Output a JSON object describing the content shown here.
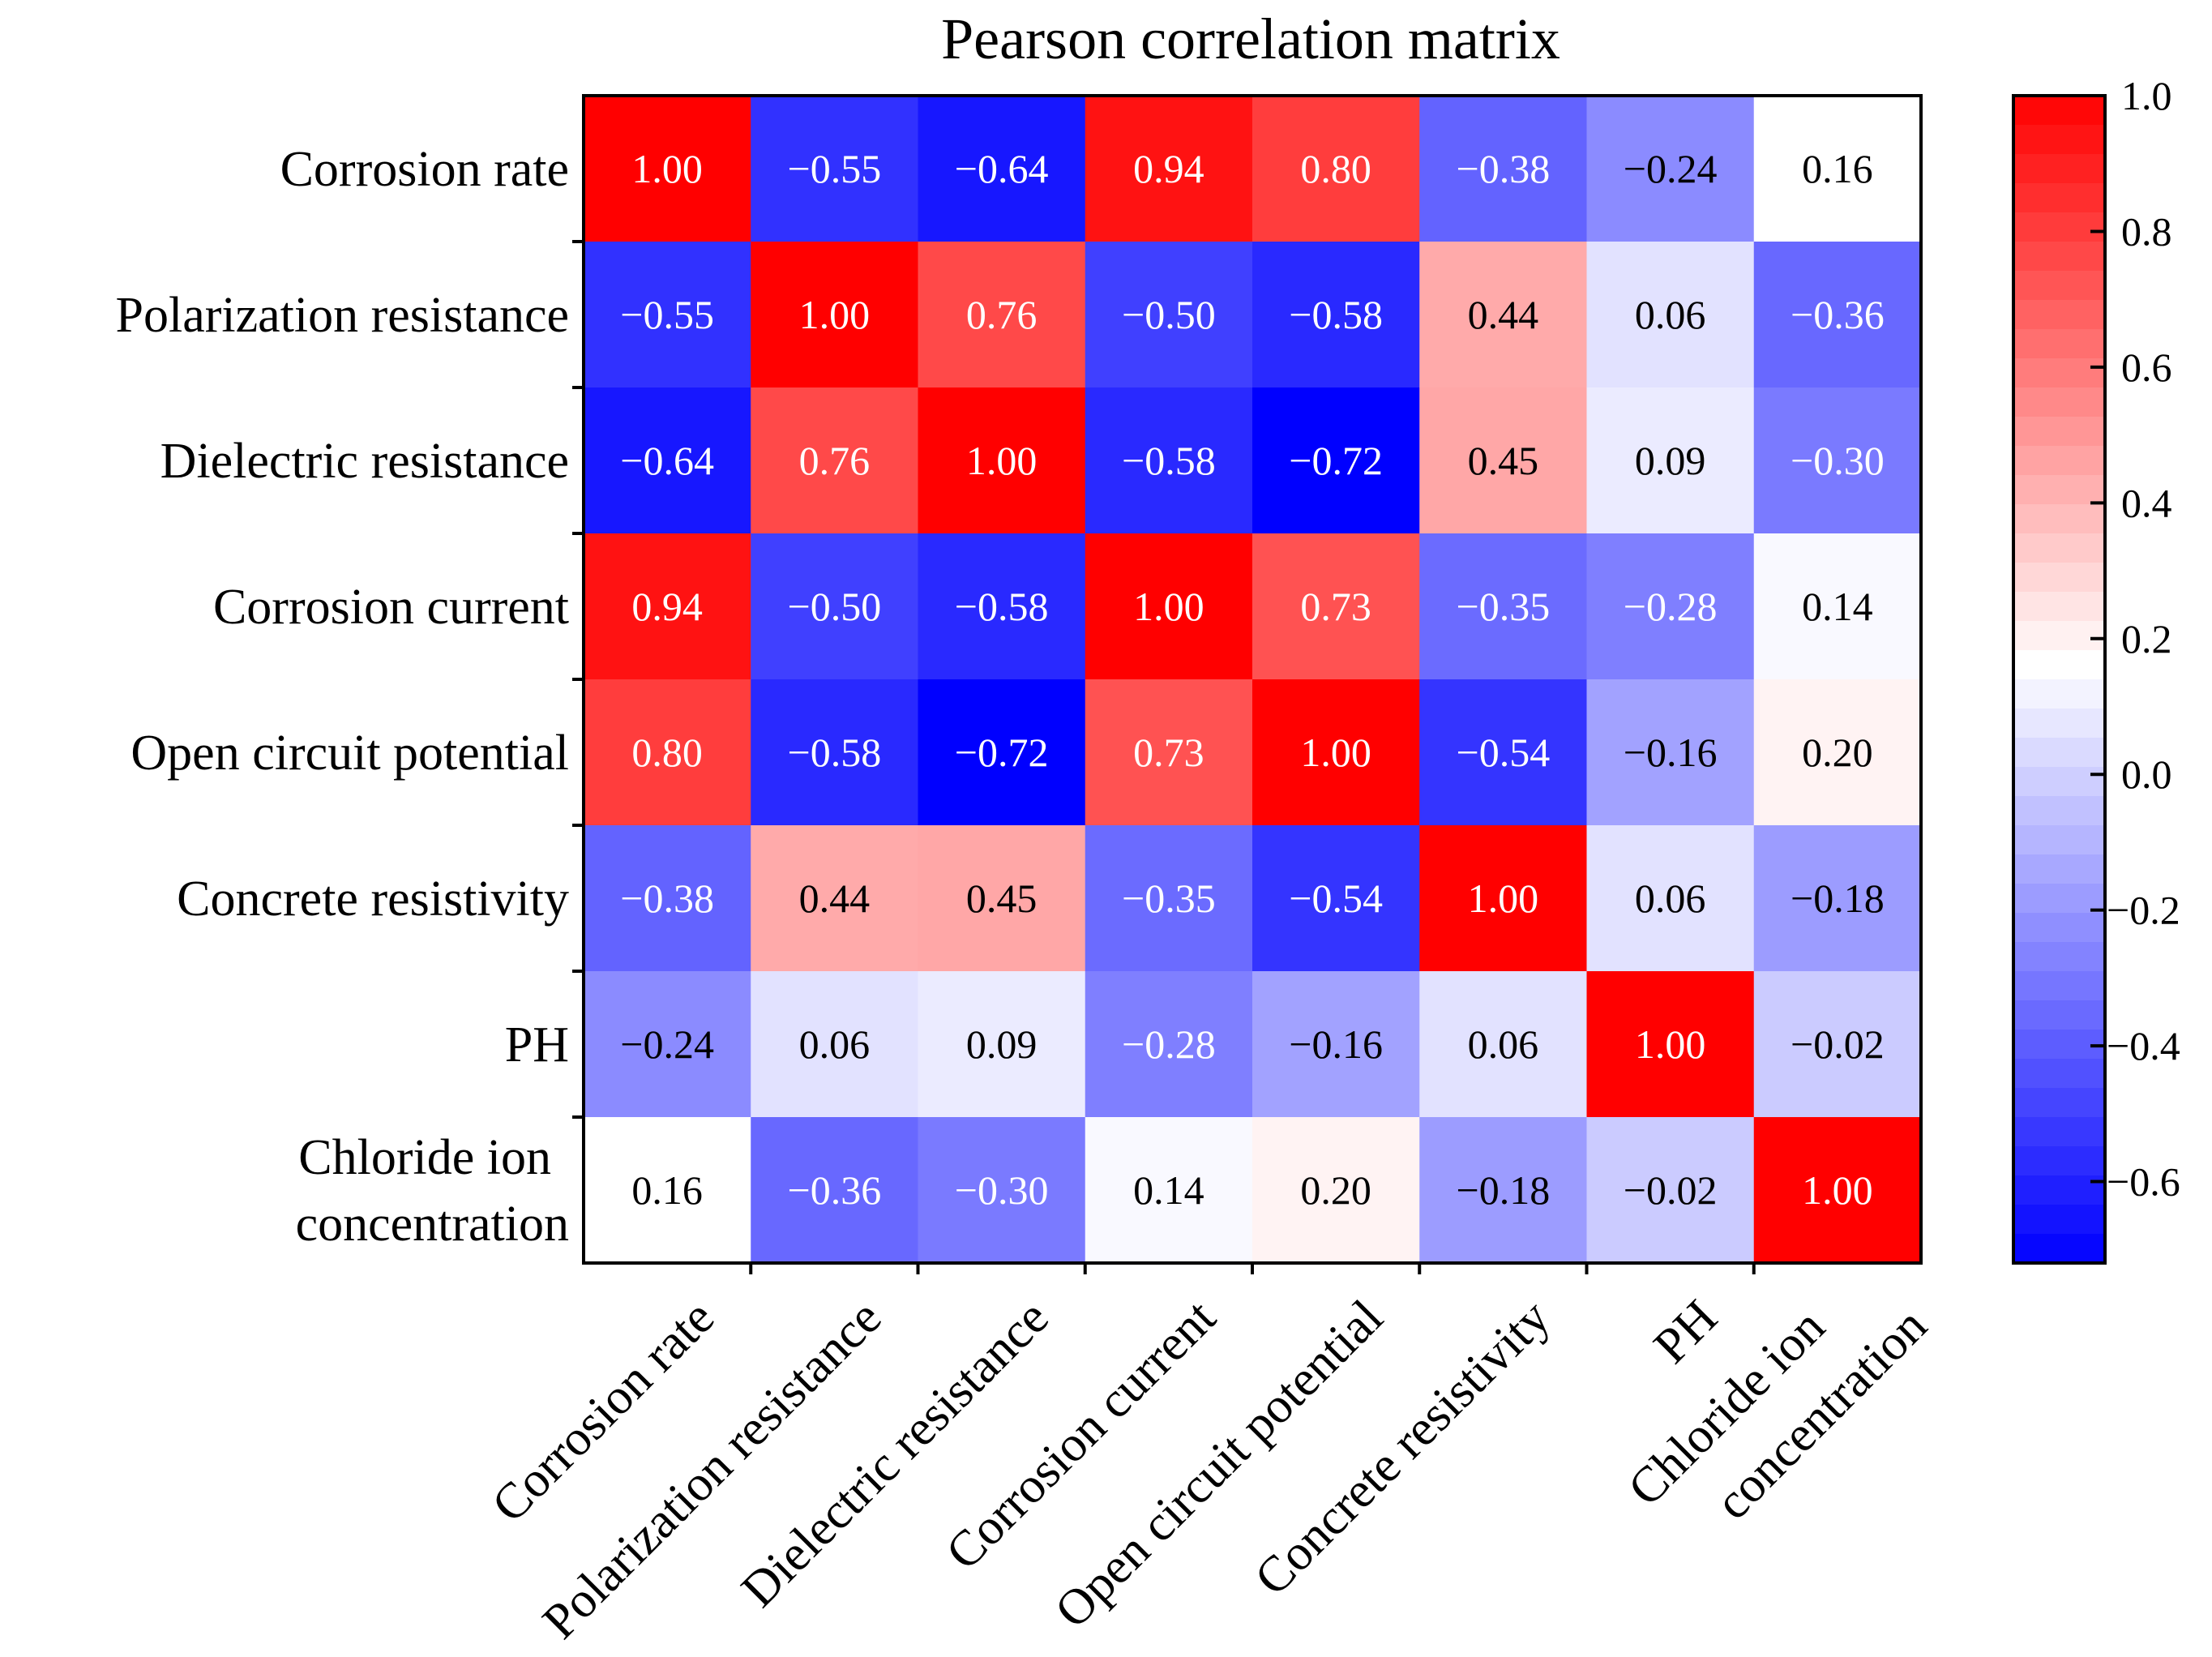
{
  "chart_data": {
    "type": "heatmap",
    "title": "Pearson correlation matrix",
    "row_labels": [
      [
        "Corrosion rate"
      ],
      [
        "Polarization resistance"
      ],
      [
        "Dielectric resistance"
      ],
      [
        "Corrosion current"
      ],
      [
        "Open circuit potential"
      ],
      [
        "Concrete resistivity"
      ],
      [
        "PH"
      ],
      [
        "Chloride ion",
        "concentration"
      ]
    ],
    "col_labels": [
      [
        "Corrosion rate"
      ],
      [
        "Polarization resistance"
      ],
      [
        "Dielectric resistance"
      ],
      [
        "Corrosion current"
      ],
      [
        "Open circuit potential"
      ],
      [
        "Concrete resistivity"
      ],
      [
        "PH"
      ],
      [
        "Chloride ion",
        "concentration"
      ]
    ],
    "values": [
      [
        1.0,
        -0.55,
        -0.64,
        0.94,
        0.8,
        -0.38,
        -0.24,
        0.16
      ],
      [
        -0.55,
        1.0,
        0.76,
        -0.5,
        -0.58,
        0.44,
        0.06,
        -0.36
      ],
      [
        -0.64,
        0.76,
        1.0,
        -0.58,
        -0.72,
        0.45,
        0.09,
        -0.3
      ],
      [
        0.94,
        -0.5,
        -0.58,
        1.0,
        0.73,
        -0.35,
        -0.28,
        0.14
      ],
      [
        0.8,
        -0.58,
        -0.72,
        0.73,
        1.0,
        -0.54,
        -0.16,
        0.2
      ],
      [
        -0.38,
        0.44,
        0.45,
        -0.35,
        -0.54,
        1.0,
        0.06,
        -0.18
      ],
      [
        -0.24,
        0.06,
        0.09,
        -0.28,
        -0.16,
        0.06,
        1.0,
        -0.02
      ],
      [
        0.16,
        -0.36,
        -0.3,
        0.14,
        0.2,
        -0.18,
        -0.02,
        1.0
      ]
    ],
    "value_labels": [
      [
        "1.00",
        "−0.55",
        "−0.64",
        "0.94",
        "0.80",
        "−0.38",
        "−0.24",
        "0.16"
      ],
      [
        "−0.55",
        "1.00",
        "0.76",
        "−0.50",
        "−0.58",
        "0.44",
        "0.06",
        "−0.36"
      ],
      [
        "−0.64",
        "0.76",
        "1.00",
        "−0.58",
        "−0.72",
        "0.45",
        "0.09",
        "−0.30"
      ],
      [
        "0.94",
        "−0.50",
        "−0.58",
        "1.00",
        "0.73",
        "−0.35",
        "−0.28",
        "0.14"
      ],
      [
        "0.80",
        "−0.58",
        "−0.72",
        "0.73",
        "1.00",
        "−0.54",
        "−0.16",
        "0.20"
      ],
      [
        "−0.38",
        "0.44",
        "0.45",
        "−0.35",
        "−0.54",
        "1.00",
        "0.06",
        "−0.18"
      ],
      [
        "−0.24",
        "0.06",
        "0.09",
        "−0.28",
        "−0.16",
        "0.06",
        "1.00",
        "−0.02"
      ],
      [
        "0.16",
        "−0.36",
        "−0.30",
        "0.14",
        "0.20",
        "−0.18",
        "−0.02",
        "1.00"
      ]
    ],
    "colorbar": {
      "range": [
        -0.72,
        1.0
      ],
      "center": 0.16,
      "low_color": "#0000ff",
      "mid_color": "#ffffff",
      "high_color": "#ff0000",
      "ticks": [
        1.0,
        0.8,
        0.6,
        0.4,
        0.2,
        0.0,
        -0.2,
        -0.4,
        -0.6
      ],
      "tick_labels": [
        "1.0",
        "0.8",
        "0.6",
        "0.4",
        "0.2",
        "0.0",
        "−0.2",
        "−0.4",
        "−0.6"
      ],
      "steps": 40
    },
    "legend_position": "right"
  }
}
